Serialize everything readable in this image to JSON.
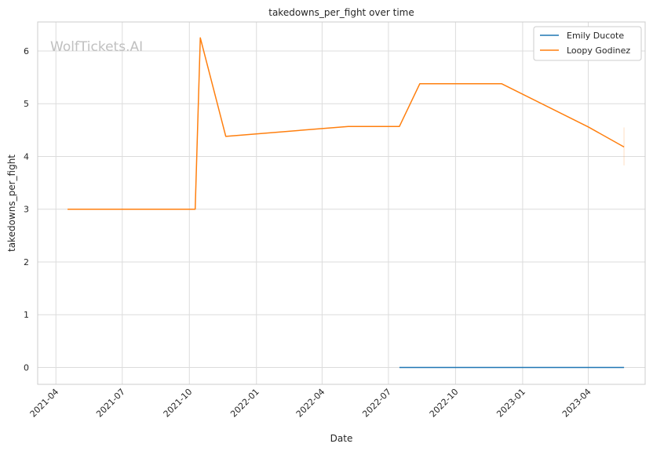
{
  "watermark": "WolfTickets.AI",
  "chart_data": {
    "type": "line",
    "title": "takedowns_per_fight over time",
    "xlabel": "Date",
    "ylabel": "takedowns_per_fight",
    "x_axis": "date",
    "xlim": [
      "2021-03-07",
      "2023-06-18"
    ],
    "ylim": [
      -0.32,
      6.55
    ],
    "x_ticks": [
      "2021-04-01",
      "2021-07-01",
      "2021-10-01",
      "2022-01-01",
      "2022-04-01",
      "2022-07-01",
      "2022-10-01",
      "2023-01-01",
      "2023-04-01"
    ],
    "x_tick_labels": [
      "2021-04",
      "2021-07",
      "2021-10",
      "2022-01",
      "2022-04",
      "2022-07",
      "2022-10",
      "2023-01",
      "2023-04"
    ],
    "y_ticks": [
      0,
      1,
      2,
      3,
      4,
      5,
      6
    ],
    "grid": true,
    "legend_position": "top-right",
    "colors": {
      "Emily Ducote": "#1f77b4",
      "Loopy Godinez": "#ff7f0e"
    },
    "series": [
      {
        "name": "Emily Ducote",
        "points": [
          {
            "x": "2022-07-16",
            "y": 0
          },
          {
            "x": "2023-05-20",
            "y": 0
          }
        ]
      },
      {
        "name": "Loopy Godinez",
        "points": [
          {
            "x": "2021-04-17",
            "y": 3.0
          },
          {
            "x": "2021-10-09",
            "y": 3.0
          },
          {
            "x": "2021-10-16",
            "y": 6.25
          },
          {
            "x": "2021-11-20",
            "y": 4.38
          },
          {
            "x": "2022-05-07",
            "y": 4.57
          },
          {
            "x": "2022-07-16",
            "y": 4.57
          },
          {
            "x": "2022-08-13",
            "y": 5.38
          },
          {
            "x": "2022-12-03",
            "y": 5.38
          },
          {
            "x": "2023-04-01",
            "y": 4.56
          },
          {
            "x": "2023-05-20",
            "y": 4.18
          }
        ],
        "error_band": {
          "x": "2023-05-20",
          "low": 3.83,
          "high": 4.55
        }
      }
    ]
  }
}
